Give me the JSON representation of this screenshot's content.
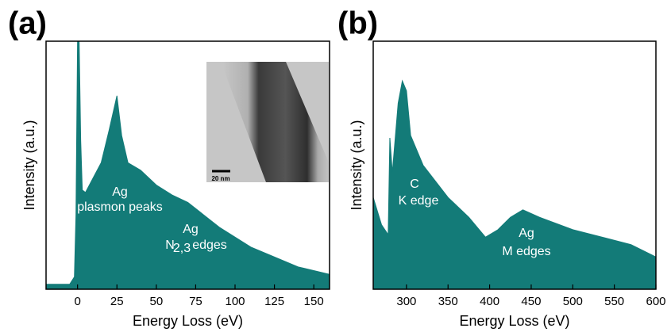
{
  "chart_data": [
    {
      "type": "area",
      "panel_label": "(a)",
      "xlabel": "Energy Loss (eV)",
      "ylabel": "Intensity (a.u.)",
      "color": "#137b78",
      "x": [
        -20,
        -5,
        -2,
        -1,
        0,
        1,
        2,
        3,
        5,
        10,
        15,
        20,
        25,
        28,
        32,
        40,
        50,
        60,
        70,
        80,
        90,
        100,
        110,
        125,
        140,
        160
      ],
      "values": [
        2,
        2,
        5,
        30,
        100,
        100,
        60,
        40,
        39,
        45,
        51,
        64,
        78,
        62,
        51,
        48,
        42,
        38,
        35,
        30,
        25,
        21,
        17,
        13,
        9,
        6
      ],
      "xlim": [
        -20,
        160
      ],
      "ylim": [
        0,
        100
      ],
      "xticks": [
        0,
        25,
        50,
        75,
        100,
        125,
        150
      ],
      "annotations": [
        "Ag",
        "plasmon peaks",
        "Ag",
        "N",
        "2,3",
        "edges"
      ],
      "inset_scale_label": "20 nm"
    },
    {
      "type": "area",
      "panel_label": "(b)",
      "xlabel": "Energy Loss (eV)",
      "ylabel": "Intensity (a.u.)",
      "color": "#137b78",
      "x": [
        260,
        270,
        278,
        280,
        283,
        290,
        295,
        300,
        305,
        320,
        350,
        375,
        395,
        410,
        425,
        440,
        460,
        500,
        535,
        570,
        600
      ],
      "values": [
        37,
        26,
        22,
        61,
        47,
        75,
        84,
        80,
        62,
        50,
        37,
        29,
        21,
        24,
        29,
        32,
        29,
        24,
        21,
        18,
        13
      ],
      "xlim": [
        260,
        600
      ],
      "ylim": [
        0,
        100
      ],
      "xticks": [
        300,
        350,
        400,
        450,
        500,
        550,
        600
      ],
      "annotations": [
        "C",
        "K edge",
        "Ag",
        "M edges"
      ]
    }
  ]
}
